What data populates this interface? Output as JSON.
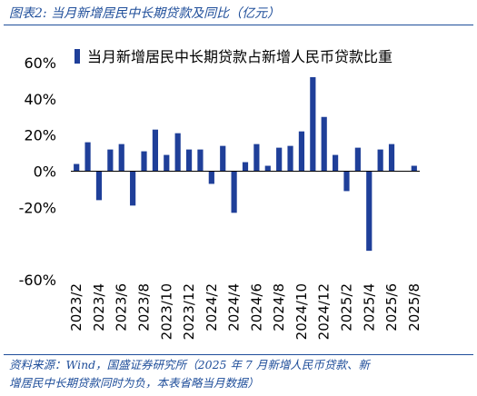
{
  "figure": {
    "title": "图表2:  当月新增居民中长期贷款及同比（亿元）",
    "source_line1": "资料来源：Wind，国盛证券研究所（2025 年 7 月新增人民币贷款、新",
    "source_line2": "增居民中长期贷款同时为负，本表省略当月数据）"
  },
  "colors": {
    "bar": "#1f3f99",
    "frame": "#1f4e9a"
  },
  "chart_data": {
    "type": "bar",
    "title": "",
    "xlabel": "",
    "ylabel": "",
    "legend": {
      "position": "top-right",
      "entries": [
        "当月新增居民中长期贷款占新增人民币贷款比重"
      ]
    },
    "ylim": [
      -60,
      60
    ],
    "yticks": [
      60,
      40,
      20,
      0,
      -20,
      -60
    ],
    "ytick_labels": [
      "60%",
      "40%",
      "20%",
      "0%",
      "-20%",
      "-60%"
    ],
    "grid": false,
    "categories": [
      "2023/2",
      "2023/3",
      "2023/4",
      "2023/5",
      "2023/6",
      "2023/7",
      "2023/8",
      "2023/9",
      "2023/10",
      "2023/11",
      "2023/12",
      "2024/1",
      "2024/2",
      "2024/3",
      "2024/4",
      "2024/5",
      "2024/6",
      "2024/7",
      "2024/8",
      "2024/9",
      "2024/10",
      "2024/11",
      "2024/12",
      "2025/1",
      "2025/2",
      "2025/3",
      "2025/4",
      "2025/5",
      "2025/6",
      "2025/7",
      "2025/8"
    ],
    "xtick_labels": [
      "2023/2",
      "2023/4",
      "2023/6",
      "2023/8",
      "2023/10",
      "2023/12",
      "2024/2",
      "2024/4",
      "2024/6",
      "2024/8",
      "2024/10",
      "2024/12",
      "2025/2",
      "2025/4",
      "2025/6",
      "2025/8"
    ],
    "series": [
      {
        "name": "当月新增居民中长期贷款占新增人民币贷款比重",
        "values": [
          4,
          16,
          -16,
          12,
          15,
          -19,
          11,
          23,
          9,
          21,
          12,
          12,
          -7,
          14,
          -23,
          5,
          15,
          3,
          13,
          14,
          22,
          52,
          30,
          9,
          -11,
          13,
          -44,
          12,
          15,
          null,
          3
        ]
      }
    ]
  }
}
